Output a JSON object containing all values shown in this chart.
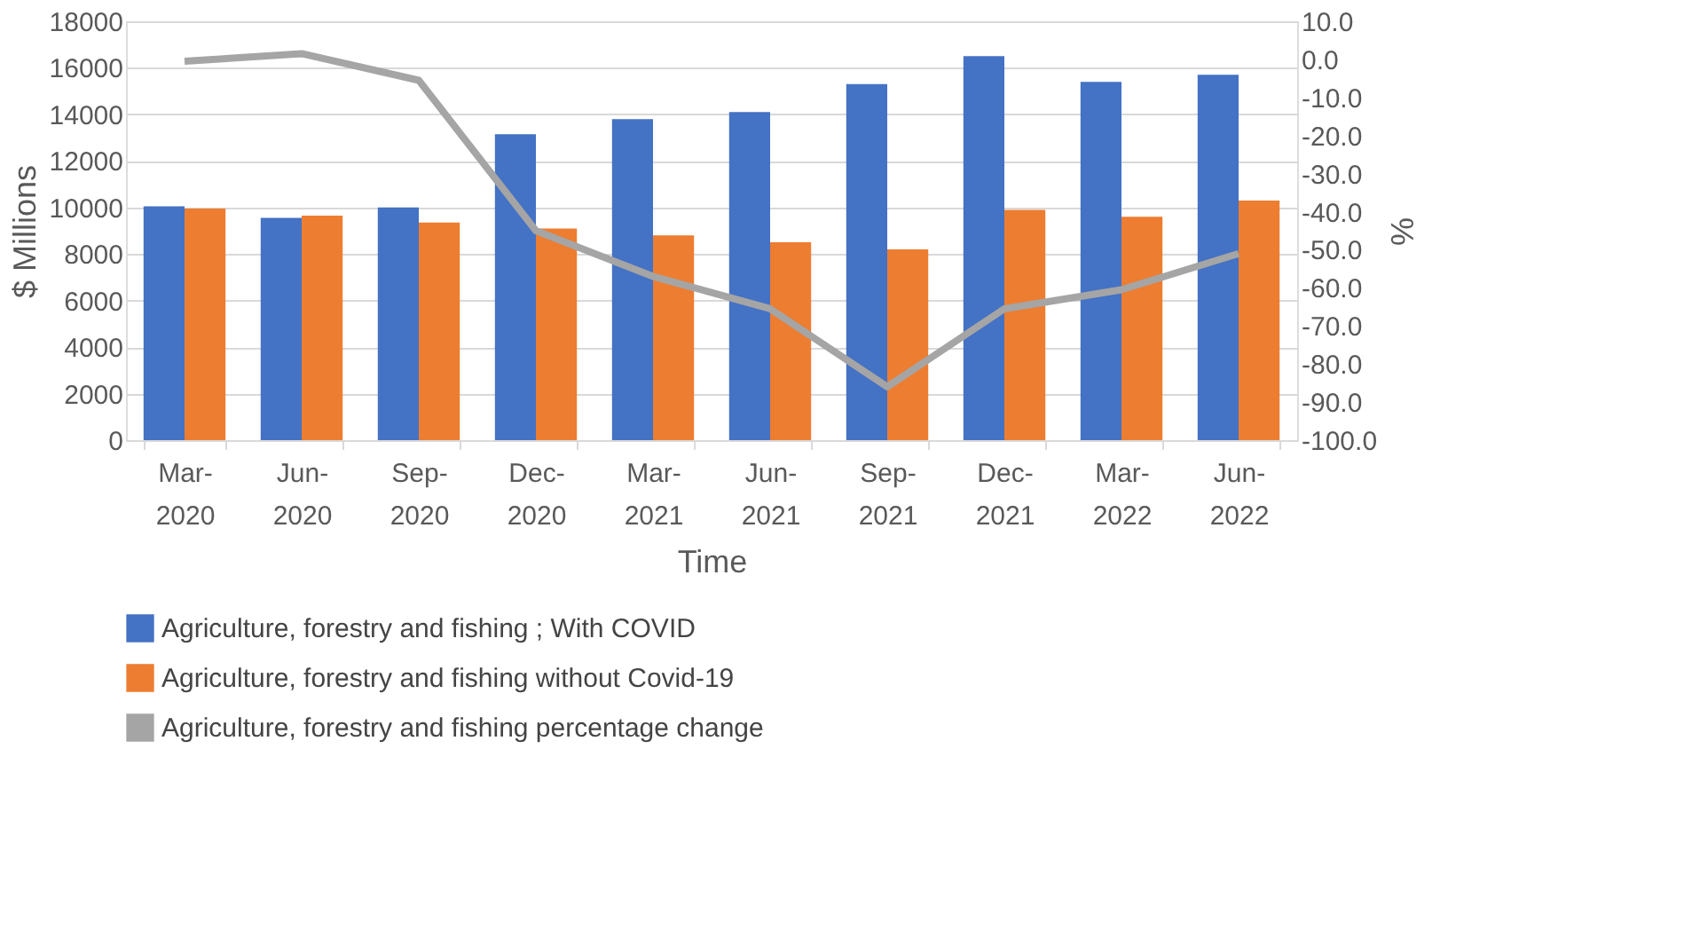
{
  "chart_data": {
    "type": "bar",
    "xlabel": "Time",
    "ylabel": "$ Millions",
    "y2label": "%",
    "categories": [
      "Mar-2020",
      "Jun-2020",
      "Sep-2020",
      "Dec-2020",
      "Mar-2021",
      "Jun-2021",
      "Sep-2021",
      "Dec-2021",
      "Mar-2022",
      "Jun-2022"
    ],
    "series": [
      {
        "name": "Agriculture, forestry and fishing ; With COVID",
        "color": "#4472c4",
        "values": [
          10050,
          9550,
          10000,
          13150,
          13800,
          14100,
          15300,
          16500,
          15400,
          15700
        ]
      },
      {
        "name": "Agriculture, forestry and fishing without Covid-19",
        "color": "#ed7d31",
        "values": [
          9950,
          9650,
          9350,
          9100,
          8800,
          8500,
          8200,
          9900,
          9600,
          10300
        ]
      },
      {
        "name": "Agriculture, forestry and fishing percentage change",
        "color": "#a5a5a5",
        "type": "line",
        "axis": "y2",
        "values": [
          -0.5,
          1.5,
          -5.5,
          -45,
          -57,
          -65.5,
          -86,
          -65.5,
          -60.5,
          -51
        ]
      }
    ],
    "ylim": [
      0,
      18000
    ],
    "yticks": [
      0,
      2000,
      4000,
      6000,
      8000,
      10000,
      12000,
      14000,
      16000,
      18000
    ],
    "y2lim": [
      -100,
      10
    ],
    "y2ticks": [
      {
        "value": 10,
        "label": "10.0"
      },
      {
        "value": 0,
        "label": "0.0"
      },
      {
        "value": -10,
        "label": "-10.0"
      },
      {
        "value": -20,
        "label": "-20.0"
      },
      {
        "value": -30,
        "label": "-30.0"
      },
      {
        "value": -40,
        "label": "-40.0"
      },
      {
        "value": -50,
        "label": "-50.0"
      },
      {
        "value": -60,
        "label": "-60.0"
      },
      {
        "value": -70,
        "label": "-70.0"
      },
      {
        "value": -80,
        "label": "-80.0"
      },
      {
        "value": -90,
        "label": "-90.0"
      },
      {
        "value": -100,
        "label": "-100.0"
      }
    ],
    "grid": "y",
    "legend": "bottom"
  }
}
